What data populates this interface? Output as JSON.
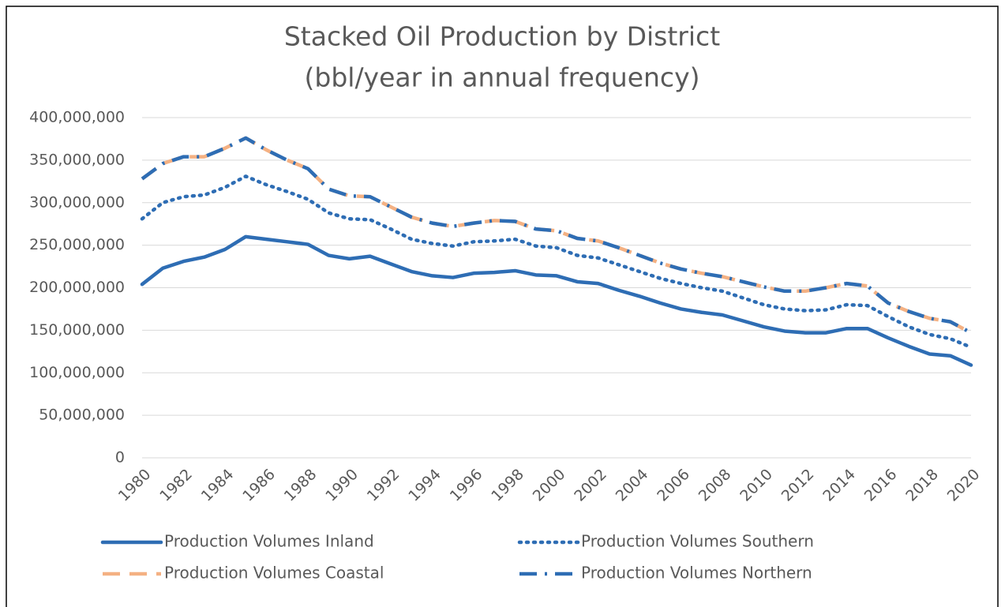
{
  "chart_data": {
    "type": "stacked-line",
    "title": "Stacked Oil Production by District",
    "subtitle": "(bbl/year in annual frequency)",
    "x": [
      1980,
      1981,
      1982,
      1983,
      1984,
      1985,
      1986,
      1987,
      1988,
      1989,
      1990,
      1991,
      1992,
      1993,
      1994,
      1995,
      1996,
      1997,
      1998,
      1999,
      2000,
      2001,
      2002,
      2003,
      2004,
      2005,
      2006,
      2007,
      2008,
      2009,
      2010,
      2011,
      2012,
      2013,
      2014,
      2015,
      2016,
      2017,
      2018,
      2019,
      2020
    ],
    "xlim": [
      1980,
      2020
    ],
    "xticks": [
      1980,
      1982,
      1984,
      1986,
      1988,
      1990,
      1992,
      1994,
      1996,
      1998,
      2000,
      2002,
      2004,
      2006,
      2008,
      2010,
      2012,
      2014,
      2016,
      2018,
      2020
    ],
    "ylim": [
      0,
      400000000
    ],
    "yticks": [
      0,
      {
        "value": 50000000,
        "label": "50,000,000"
      },
      {
        "value": 100000000,
        "label": "100,000,000"
      },
      {
        "value": 150000000,
        "label": "150,000,000"
      },
      {
        "value": 200000000,
        "label": "200,000,000"
      },
      {
        "value": 250000000,
        "label": "250,000,000"
      },
      {
        "value": 300000000,
        "label": "300,000,000"
      },
      {
        "value": 350000000,
        "label": "350,000,000"
      },
      {
        "value": 400000000,
        "label": "400,000,000"
      }
    ],
    "grid": true,
    "legend": "bottom",
    "series": [
      {
        "name": "Production Volumes Inland",
        "color": "#2e6db4",
        "line_style": "solid",
        "values": [
          204000000,
          223000000,
          231000000,
          236000000,
          245000000,
          260000000,
          257000000,
          254000000,
          251000000,
          238000000,
          234000000,
          237000000,
          228000000,
          219000000,
          214000000,
          212000000,
          217000000,
          218000000,
          220000000,
          215000000,
          214000000,
          207000000,
          205000000,
          197000000,
          190000000,
          182000000,
          175000000,
          171000000,
          168000000,
          161000000,
          154000000,
          149000000,
          147000000,
          147000000,
          152000000,
          152000000,
          141000000,
          131000000,
          122000000,
          120000000,
          109000000
        ]
      },
      {
        "name": "Production Volumes Southern",
        "color": "#2e6db4",
        "line_style": "dotted",
        "values": [
          77000000,
          77000000,
          76000000,
          73000000,
          73000000,
          71000000,
          64000000,
          59000000,
          53000000,
          50000000,
          47000000,
          43000000,
          41000000,
          38000000,
          38000000,
          37000000,
          37000000,
          37000000,
          37000000,
          34000000,
          33000000,
          31000000,
          30000000,
          30000000,
          29000000,
          29000000,
          30000000,
          29000000,
          28000000,
          27000000,
          26000000,
          26000000,
          26000000,
          27000000,
          28000000,
          27000000,
          25000000,
          23000000,
          23000000,
          20000000,
          21000000
        ]
      },
      {
        "name": "Production Volumes Coastal",
        "color": "#f4b183",
        "line_style": "dashed",
        "values": [
          47000000,
          46000000,
          47000000,
          45000000,
          46000000,
          45000000,
          41000000,
          37000000,
          36000000,
          28000000,
          27000000,
          27000000,
          26000000,
          26000000,
          24000000,
          23000000,
          22000000,
          24000000,
          21000000,
          20000000,
          20000000,
          20000000,
          20000000,
          20000000,
          19000000,
          18000000,
          17000000,
          17000000,
          17000000,
          19000000,
          21000000,
          21000000,
          23000000,
          26000000,
          25000000,
          23000000,
          16000000,
          18000000,
          19000000,
          20000000,
          17000000
        ]
      },
      {
        "name": "Production Volumes Northern",
        "color": "#2e6db4",
        "line_style": "dash-dot",
        "values": [
          0,
          0,
          0,
          0,
          0,
          0,
          0,
          0,
          0,
          0,
          0,
          0,
          0,
          0,
          0,
          0,
          0,
          0,
          0,
          0,
          0,
          0,
          0,
          0,
          0,
          0,
          0,
          0,
          0,
          0,
          0,
          0,
          0,
          0,
          0,
          0,
          0,
          0,
          0,
          0,
          0
        ]
      }
    ]
  }
}
